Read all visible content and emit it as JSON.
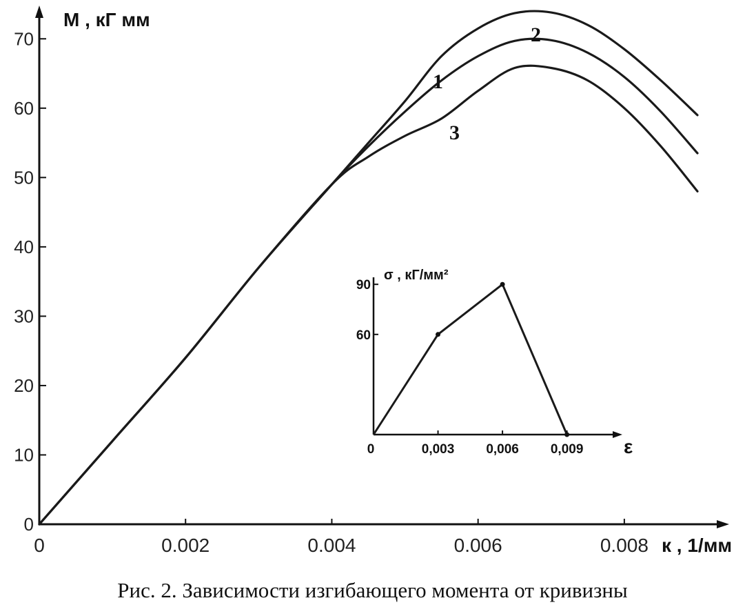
{
  "chart_data": [
    {
      "type": "line",
      "ylabel": "M , кГ мм",
      "xlabel": "к , 1/мм",
      "xlim": [
        0,
        0.009
      ],
      "ylim": [
        0,
        75
      ],
      "x_ticks": [
        "0",
        "0.002",
        "0.004",
        "0.006",
        "0.008"
      ],
      "x_tick_values": [
        0,
        0.002,
        0.004,
        0.006,
        0.008
      ],
      "y_ticks": [
        "0",
        "10",
        "20",
        "30",
        "40",
        "50",
        "60",
        "70"
      ],
      "y_tick_values": [
        0,
        10,
        20,
        30,
        40,
        50,
        60,
        70
      ],
      "grid": false,
      "legend": "none",
      "series": [
        {
          "name": "1",
          "x": [
            0,
            0.001,
            0.002,
            0.003,
            0.004,
            0.0045,
            0.005,
            0.0055,
            0.006,
            0.0065,
            0.007,
            0.0075,
            0.008,
            0.0085,
            0.009
          ],
          "y": [
            0,
            12,
            24,
            37,
            49,
            54.5,
            59.5,
            64,
            67.5,
            69.7,
            69.8,
            68,
            64.5,
            59.5,
            53.5
          ]
        },
        {
          "name": "2",
          "x": [
            0,
            0.001,
            0.002,
            0.003,
            0.004,
            0.0045,
            0.005,
            0.0055,
            0.006,
            0.0065,
            0.007,
            0.0075,
            0.008,
            0.0085,
            0.009
          ],
          "y": [
            0,
            12,
            24,
            37,
            49,
            55,
            61,
            67.5,
            71.5,
            73.7,
            73.8,
            72,
            68.5,
            64,
            59
          ]
        },
        {
          "name": "3",
          "x": [
            0,
            0.001,
            0.002,
            0.003,
            0.004,
            0.0045,
            0.005,
            0.0055,
            0.006,
            0.0065,
            0.007,
            0.0075,
            0.008,
            0.0085,
            0.009
          ],
          "y": [
            0,
            12,
            24,
            37,
            49,
            53,
            56,
            58.5,
            62.5,
            65.8,
            65.8,
            64,
            60,
            54.5,
            48
          ]
        }
      ],
      "curve_labels": [
        "1",
        "2",
        "3"
      ]
    },
    {
      "type": "line",
      "title": "inset",
      "ylabel": "σ , кГ/мм²",
      "xlabel": "ε",
      "xlim": [
        0,
        0.011
      ],
      "ylim": [
        0,
        100
      ],
      "x_ticks": [
        "0",
        "0,003",
        "0,006",
        "0,009"
      ],
      "x_tick_values": [
        0,
        0.003,
        0.006,
        0.009
      ],
      "y_ticks": [
        "60",
        "90"
      ],
      "y_tick_values": [
        60,
        90
      ],
      "series": [
        {
          "name": "",
          "x": [
            0,
            0.003,
            0.006,
            0.009
          ],
          "y": [
            0,
            60,
            90,
            0
          ]
        }
      ]
    }
  ],
  "caption": "Рис. 2. Зависимости изгибающего момента от кривизны"
}
